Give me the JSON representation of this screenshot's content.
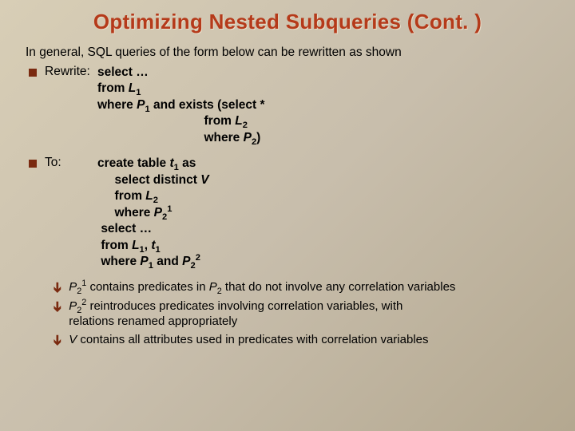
{
  "background": {
    "gradient_from": "#d8ceb6",
    "gradient_to": "#b4a890"
  },
  "title": {
    "text": "Optimizing Nested Subqueries (Cont. )",
    "color": "#b53a1a",
    "fontsize": 26
  },
  "intro": "In general, SQL queries of the form below can be rewritten as shown",
  "bullets": {
    "square_color": "#7a2a10",
    "arrow_color": "#7a2a10"
  },
  "rewrite": {
    "label": "Rewrite:",
    "line1_kw": "select",
    "line1_rest": " …",
    "line2_kw": "from ",
    "line2_var": "L",
    "line2_sub": "1",
    "line3_kw1": "where ",
    "line3_var1": "P",
    "line3_sub1": "1",
    "line3_kw2": " and exists (select *",
    "line4_pad": "                               ",
    "line4_kw": "from ",
    "line4_var": "L",
    "line4_sub": "2",
    "line5_pad": "                               ",
    "line5_kw": "where ",
    "line5_var": "P",
    "line5_sub": "2",
    "line5_close": ")"
  },
  "to": {
    "label": "To:",
    "line1_kw": "create table ",
    "line1_var": "t",
    "line1_sub": "1",
    "line1_kw2": " as",
    "line2_pad": "     ",
    "line2_kw": "select distinct ",
    "line2_var": "V",
    "line3_pad": "     ",
    "line3_kw": "from ",
    "line3_var": "L",
    "line3_sub": "2",
    "line4_pad": "     ",
    "line4_kw": "where ",
    "line4_var": "P",
    "line4_sub": "2",
    "line4_sup": "1",
    "line5_pad": " ",
    "line5_kw": "select …",
    "line6_pad": " ",
    "line6_kw": "from ",
    "line6_var1": "L",
    "line6_sub1": "1",
    "line6_comma": ", ",
    "line6_var2": "t",
    "line6_sub2": "1",
    "line7_pad": " ",
    "line7_kw1": "where ",
    "line7_var1": "P",
    "line7_sub1": "1",
    "line7_kw2": " and ",
    "line7_var2": "P",
    "line7_sub2": "2",
    "line7_sup2": "2"
  },
  "note1": {
    "var": "P",
    "sub": "2",
    "sup": "1",
    "mid": " contains predicates in ",
    "var2": "P",
    "sub2": "2",
    "rest": " that do not involve any correlation variables"
  },
  "note2": {
    "var": "P",
    "sub": "2",
    "sup": "2",
    "rest1": "  reintroduces predicates involving correlation variables, with",
    "rest2": "relations renamed appropriately"
  },
  "note3": {
    "var": "V",
    "rest": " contains all attributes used in predicates with correlation variables"
  }
}
